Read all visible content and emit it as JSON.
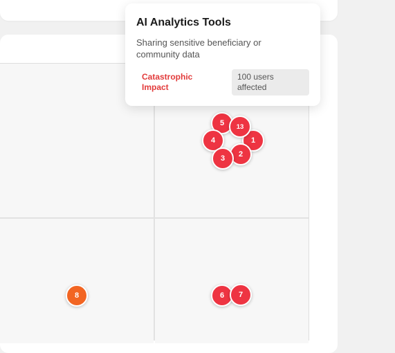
{
  "tooltip": {
    "title": "AI Analytics Tools",
    "description": "Sharing sensitive beneficiary or community data",
    "impact_label": "Catastrophic Impact",
    "users_label": "100 users affected"
  },
  "markers": [
    {
      "label": "5",
      "color": "#ee3442"
    },
    {
      "label": "13",
      "color": "#ee3442"
    },
    {
      "label": "4",
      "color": "#ee3442"
    },
    {
      "label": "1",
      "color": "#ee3442"
    },
    {
      "label": "3",
      "color": "#ee3442"
    },
    {
      "label": "2",
      "color": "#ee3442"
    },
    {
      "label": "8",
      "color": "#f26522"
    },
    {
      "label": "6",
      "color": "#ee3442"
    },
    {
      "label": "7",
      "color": "#ee3442"
    }
  ],
  "colors": {
    "critical": "#ee3442",
    "high": "#f26522",
    "impact_text": "#e23b3b"
  }
}
